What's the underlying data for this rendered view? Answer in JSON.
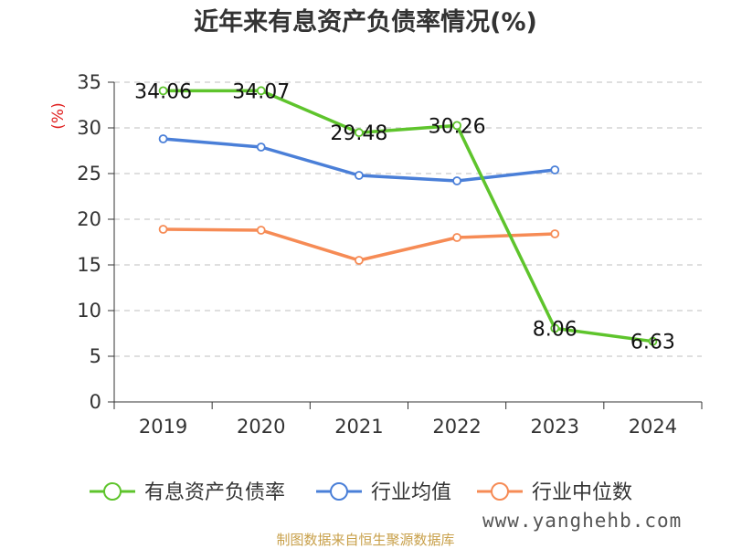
{
  "chart_data": {
    "type": "line",
    "title": "近年来有息资产负债率情况(%)",
    "ylabel": "(%)",
    "xlabel": "",
    "categories": [
      "2019",
      "2020",
      "2021",
      "2022",
      "2023",
      "2024"
    ],
    "ylim": [
      0,
      35
    ],
    "yticks": [
      0,
      5,
      10,
      15,
      20,
      25,
      30,
      35
    ],
    "grid": true,
    "legend_position": "bottom",
    "series": [
      {
        "name": "有息资产负债率",
        "color": "#5ec42c",
        "values": [
          34.06,
          34.07,
          29.48,
          30.26,
          8.06,
          6.63
        ],
        "labels": [
          "34.06",
          "34.07",
          "29.48",
          "30.26",
          "8.06",
          "6.63"
        ]
      },
      {
        "name": "行业均值",
        "color": "#4a7fd8",
        "values": [
          28.8,
          27.9,
          24.8,
          24.2,
          25.4,
          null
        ]
      },
      {
        "name": "行业中位数",
        "color": "#f68b55",
        "values": [
          18.9,
          18.8,
          15.5,
          18.0,
          18.4,
          null
        ]
      }
    ]
  },
  "footer": {
    "source": "制图数据来自恒生聚源数据库",
    "watermark": "www.yanghehb.com"
  }
}
